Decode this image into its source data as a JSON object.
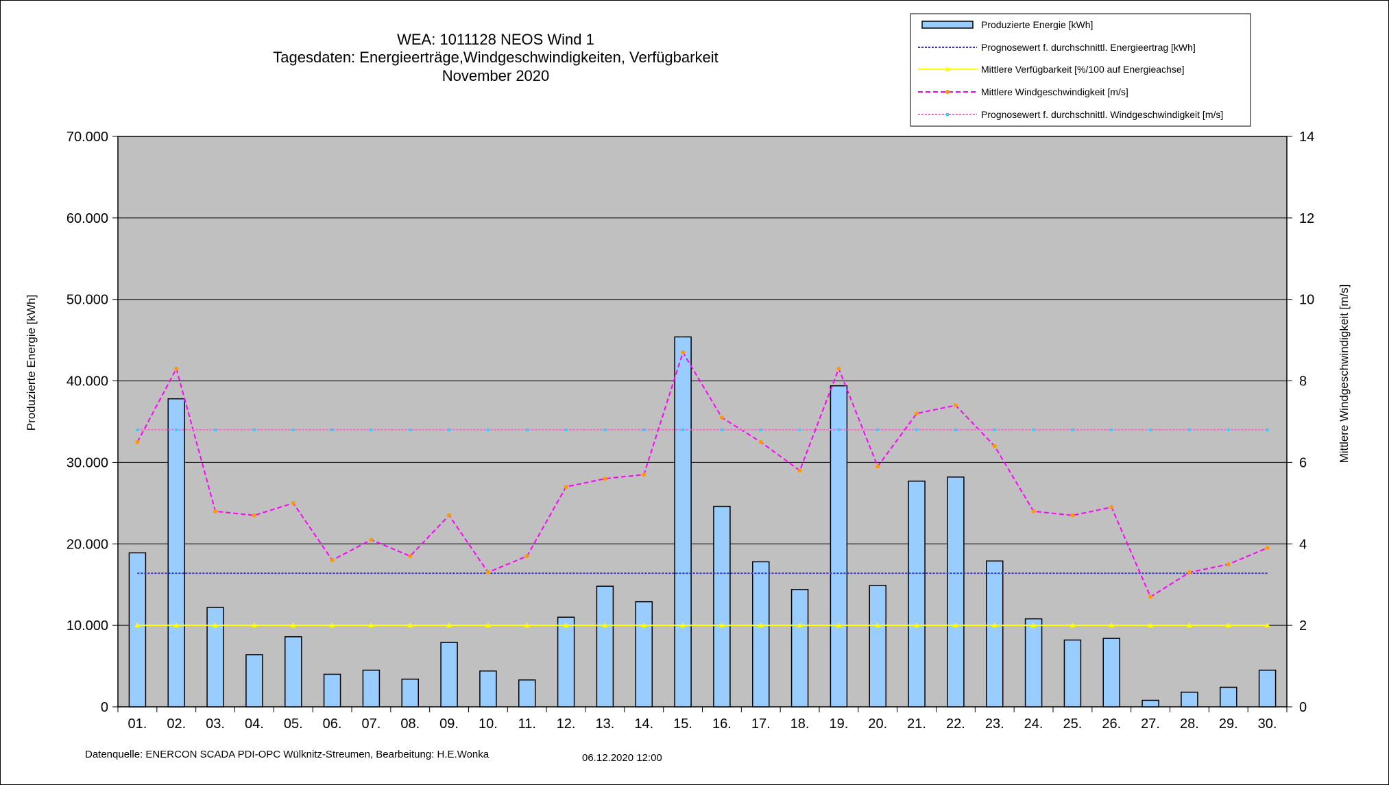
{
  "chart_data": {
    "type": "bar",
    "title_lines": [
      "WEA: 1011128            NEOS Wind 1",
      "Tagesdaten:  Energieerträge,Windgeschwindigkeiten,  Verfügbarkeit",
      "November 2020"
    ],
    "ylabel_left": "Produzierte Energie [kWh]",
    "ylabel_right": "Mittlere Windgeschwindigkeit [m/s]",
    "ylim_left": [
      0,
      70000
    ],
    "ylim_right": [
      0,
      14
    ],
    "yticks_left": [
      "0",
      "10.000",
      "20.000",
      "30.000",
      "40.000",
      "50.000",
      "60.000",
      "70.000"
    ],
    "yticks_right": [
      "0",
      "2",
      "4",
      "6",
      "8",
      "10",
      "12",
      "14"
    ],
    "grid": true,
    "legend_position": "top-right",
    "categories": [
      "01.",
      "02.",
      "03.",
      "04.",
      "05.",
      "06.",
      "07.",
      "08.",
      "09.",
      "10.",
      "11.",
      "12.",
      "13.",
      "14.",
      "15.",
      "16.",
      "17.",
      "18.",
      "19.",
      "20.",
      "21.",
      "22.",
      "23.",
      "24.",
      "25.",
      "26.",
      "27.",
      "28.",
      "29.",
      "30."
    ],
    "series": [
      {
        "name": "Produzierte Energie [kWh]",
        "kind": "bar",
        "axis": "left",
        "color": "#99ccff",
        "values": [
          18900,
          37800,
          12200,
          6400,
          8600,
          4000,
          4500,
          3400,
          7900,
          4400,
          3300,
          11000,
          14800,
          12900,
          45400,
          24600,
          17800,
          14400,
          39400,
          14900,
          27700,
          28200,
          17900,
          10800,
          8200,
          8400,
          800,
          1800,
          2400,
          4500
        ]
      },
      {
        "name": "Prognosewert f. durchschnittl. Energieertrag  [kWh]",
        "kind": "hline",
        "axis": "left",
        "color": "#3333cc",
        "value": 16400
      },
      {
        "name": "Mittlere Verfügbarkeit [%/100 auf Energieachse]",
        "kind": "line",
        "axis": "left",
        "color": "#ffff00",
        "values": [
          10000,
          10000,
          10000,
          10000,
          10000,
          10000,
          10000,
          10000,
          10000,
          10000,
          10000,
          10000,
          10000,
          10000,
          10000,
          10000,
          10000,
          10000,
          10000,
          10000,
          10000,
          10000,
          10000,
          10000,
          10000,
          10000,
          10000,
          10000,
          10000,
          10000
        ]
      },
      {
        "name": "Mittlere Windgeschwindigkeit [m/s]",
        "kind": "line",
        "axis": "right",
        "color": "#ff00ff",
        "marker_color": "#ff9900",
        "values": [
          6.5,
          8.3,
          4.8,
          4.7,
          5.0,
          3.6,
          4.1,
          3.7,
          4.7,
          3.3,
          3.7,
          5.4,
          5.6,
          5.7,
          8.7,
          7.1,
          6.5,
          5.8,
          8.3,
          5.9,
          7.2,
          7.4,
          6.4,
          4.8,
          4.7,
          4.9,
          2.7,
          3.3,
          3.5,
          3.9
        ]
      },
      {
        "name": "Prognosewert f. durchschnittl. Windgeschwindigkeit [m/s]",
        "kind": "hline",
        "axis": "right",
        "color": "#ff66cc",
        "marker_color": "#33ccff",
        "value": 6.8
      }
    ],
    "footer_left": "Datenquelle:  ENERCON  SCADA PDI-OPC Wülknitz-Streumen,    Bearbeitung:  H.E.Wonka",
    "footer_right": "06.12.2020 12:00"
  }
}
